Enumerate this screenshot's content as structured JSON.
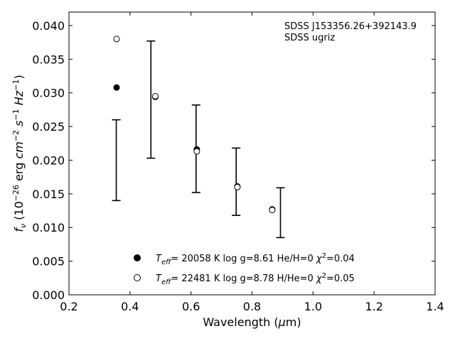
{
  "chart_data": {
    "type": "scatter",
    "xlabel": "Wavelength (μm)",
    "ylabel": "f_ν (10^-26 erg cm^-2 s^-1 Hz^-1)",
    "xlim": [
      0.2,
      1.4
    ],
    "ylim": [
      0.0,
      0.042
    ],
    "x_ticks": [
      "0.2",
      "0.4",
      "0.6",
      "0.8",
      "1.0",
      "1.2",
      "1.4"
    ],
    "y_ticks": [
      "0.000",
      "0.005",
      "0.010",
      "0.015",
      "0.020",
      "0.025",
      "0.030",
      "0.035",
      "0.040"
    ],
    "annotations": [
      "SDSS J153356.26+392143.9",
      "SDSS ugriz"
    ],
    "grid": false,
    "legend_position": "bottom-center",
    "observed": {
      "x": [
        0.3551,
        0.4686,
        0.6166,
        0.748,
        0.8932
      ],
      "y": [
        0.02,
        0.029,
        0.0217,
        0.0168,
        0.0122
      ],
      "yerr": [
        0.006,
        0.0087,
        0.0065,
        0.005,
        0.0037
      ]
    },
    "series": [
      {
        "name": "T_eff= 20058 K  log g=8.61  He/H=0  χ²=0.04",
        "marker": "filled-circle",
        "x": [
          0.356,
          0.483,
          0.619,
          0.752,
          0.866
        ],
        "y": [
          0.0308,
          0.0294,
          0.0216,
          0.0161,
          0.0127
        ]
      },
      {
        "name": "T_eff= 22481 K  log g=8.78  H/He=0  χ²=0.05",
        "marker": "open-circle",
        "x": [
          0.356,
          0.483,
          0.619,
          0.752,
          0.866
        ],
        "y": [
          0.038,
          0.0295,
          0.0213,
          0.016,
          0.0126
        ]
      }
    ]
  }
}
